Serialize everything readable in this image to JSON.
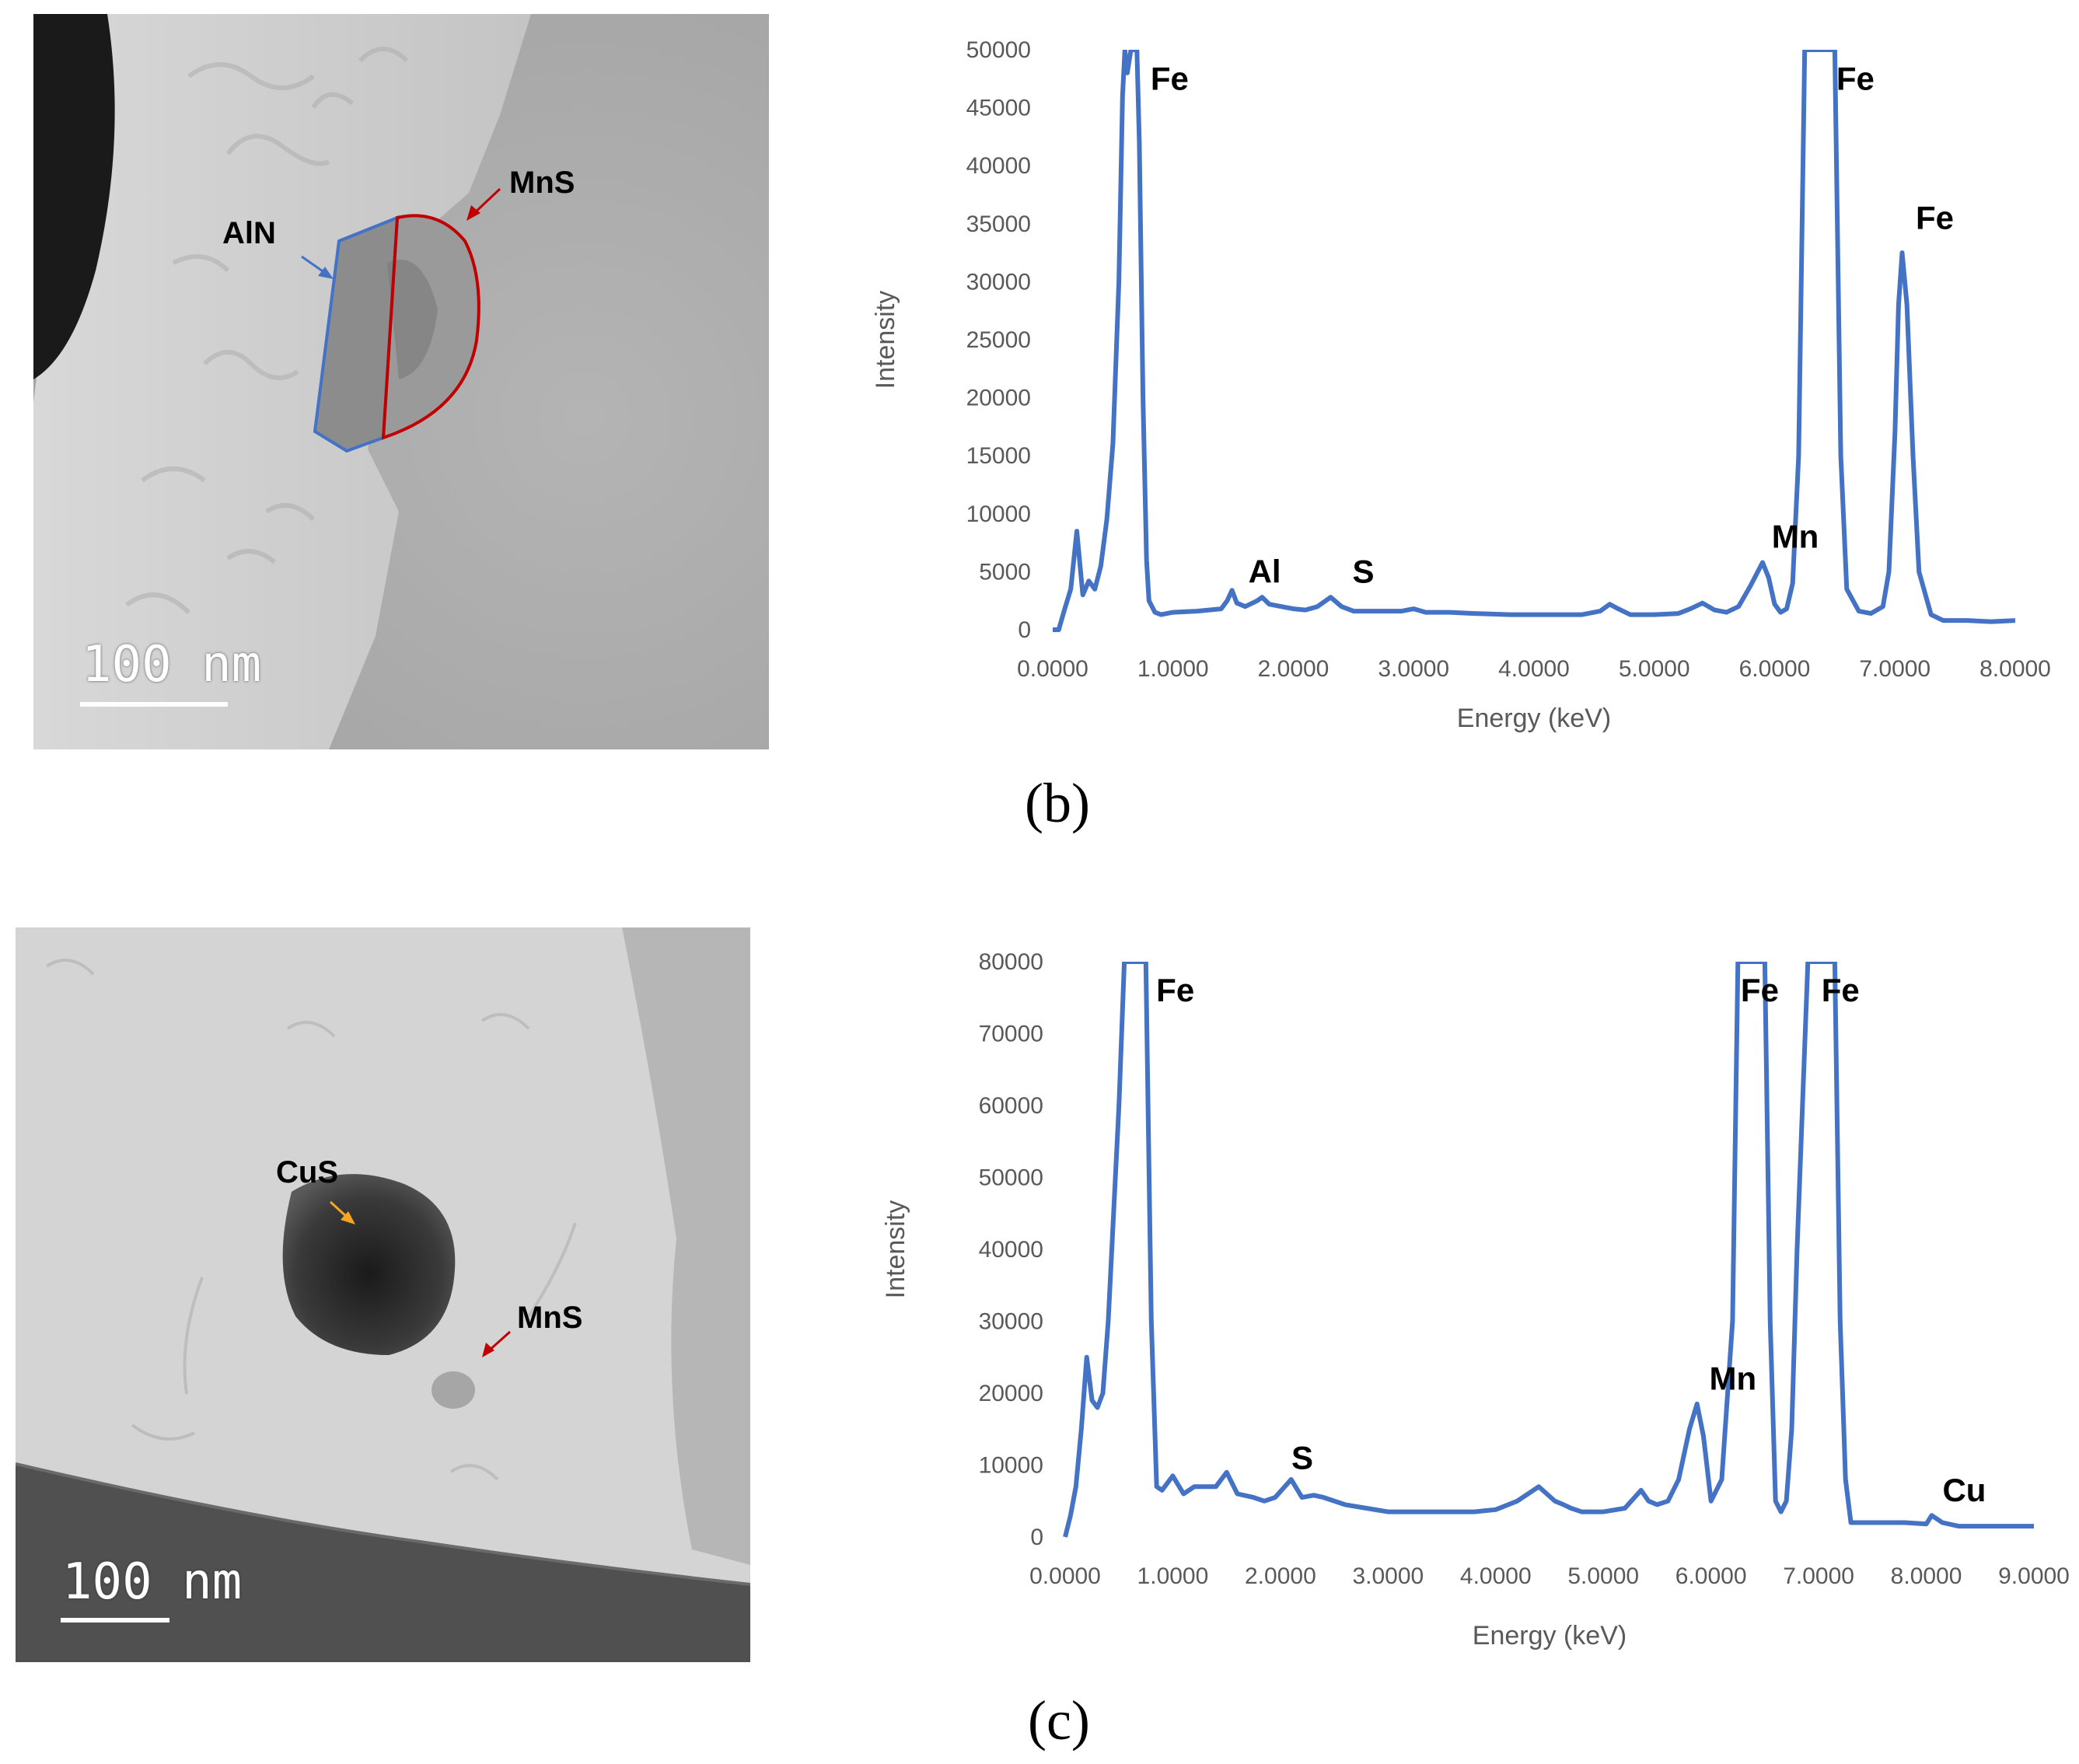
{
  "colors": {
    "series": "#4472C4",
    "aln_outline": "#4472C4",
    "mns_outline": "#C00000",
    "cus_arrow": "#F5A623",
    "axis_text": "#595959"
  },
  "micrographs": [
    {
      "scale_bar_label": "100 nm",
      "annotations": [
        "AlN",
        "MnS"
      ]
    },
    {
      "scale_bar_label": "100 nm",
      "annotations": [
        "CuS",
        "MnS"
      ]
    }
  ],
  "captions": [
    "(b)",
    "(c)"
  ],
  "chart_data": [
    {
      "type": "line",
      "xlabel": "Energy (keV)",
      "ylabel": "Intensity",
      "xlim": [
        0,
        8
      ],
      "ylim": [
        0,
        50000
      ],
      "x_ticks": [
        "0.0000",
        "1.0000",
        "2.0000",
        "3.0000",
        "4.0000",
        "5.0000",
        "6.0000",
        "7.0000",
        "8.0000"
      ],
      "y_ticks": [
        "0",
        "5000",
        "10000",
        "15000",
        "20000",
        "25000",
        "30000",
        "35000",
        "40000",
        "45000",
        "50000"
      ],
      "peak_labels": [
        {
          "text": "Fe",
          "x": 0.7,
          "y": 47500
        },
        {
          "text": "Al",
          "x": 1.49,
          "y": 5000
        },
        {
          "text": "S",
          "x": 2.31,
          "y": 5000
        },
        {
          "text": "Mn",
          "x": 5.9,
          "y": 8000
        },
        {
          "text": "Fe",
          "x": 6.4,
          "y": 47500
        },
        {
          "text": "Fe",
          "x": 7.06,
          "y": 35500
        }
      ],
      "series": [
        {
          "x": [
            0,
            0.05,
            0.1,
            0.15,
            0.2,
            0.25,
            0.3,
            0.35,
            0.4,
            0.45,
            0.5,
            0.55,
            0.58,
            0.6,
            0.62,
            0.65,
            0.68,
            0.7,
            0.72,
            0.75,
            0.78,
            0.8,
            0.85,
            0.9,
            1.0,
            1.2,
            1.4,
            1.45,
            1.49,
            1.53,
            1.6,
            1.7,
            1.74,
            1.8,
            1.9,
            2.0,
            2.1,
            2.2,
            2.31,
            2.4,
            2.5,
            2.7,
            2.9,
            3.0,
            3.1,
            3.3,
            3.5,
            3.8,
            4.0,
            4.2,
            4.4,
            4.55,
            4.63,
            4.7,
            4.8,
            5.0,
            5.2,
            5.3,
            5.4,
            5.5,
            5.6,
            5.7,
            5.8,
            5.9,
            5.95,
            6.0,
            6.05,
            6.1,
            6.15,
            6.2,
            6.25,
            6.3,
            6.35,
            6.4,
            6.45,
            6.5,
            6.55,
            6.6,
            6.7,
            6.8,
            6.9,
            6.95,
            7.0,
            7.03,
            7.06,
            7.1,
            7.15,
            7.2,
            7.3,
            7.4,
            7.6,
            7.8,
            8.0
          ],
          "y": [
            0,
            0,
            1800,
            3500,
            8500,
            3000,
            4200,
            3500,
            5500,
            9500,
            16000,
            30000,
            46000,
            50000,
            48000,
            50000,
            50000,
            50000,
            42000,
            20000,
            6000,
            2500,
            1500,
            1300,
            1500,
            1600,
            1800,
            2500,
            3400,
            2300,
            2000,
            2500,
            2800,
            2200,
            2000,
            1800,
            1700,
            2000,
            2800,
            2000,
            1600,
            1600,
            1600,
            1800,
            1500,
            1500,
            1400,
            1300,
            1300,
            1300,
            1300,
            1600,
            2200,
            1800,
            1300,
            1300,
            1400,
            1800,
            2300,
            1700,
            1500,
            2000,
            3800,
            5800,
            4500,
            2200,
            1500,
            1800,
            4000,
            15000,
            50000,
            50000,
            50000,
            50000,
            50000,
            50000,
            15000,
            3500,
            1600,
            1400,
            2000,
            5000,
            17000,
            28000,
            32500,
            28000,
            15000,
            5000,
            1300,
            800,
            800,
            700,
            800
          ]
        }
      ]
    },
    {
      "type": "line",
      "xlabel": "Energy (keV)",
      "ylabel": "Intensity",
      "xlim": [
        0,
        9
      ],
      "ylim": [
        0,
        80000
      ],
      "x_ticks": [
        "0.0000",
        "1.0000",
        "2.0000",
        "3.0000",
        "4.0000",
        "5.0000",
        "6.0000",
        "7.0000",
        "8.0000",
        "9.0000"
      ],
      "y_ticks": [
        "0",
        "10000",
        "20000",
        "30000",
        "40000",
        "50000",
        "60000",
        "70000",
        "80000"
      ],
      "peak_labels": [
        {
          "text": "Fe",
          "x": 0.72,
          "y": 76000
        },
        {
          "text": "S",
          "x": 1.9,
          "y": 11000
        },
        {
          "text": "Mn",
          "x": 5.9,
          "y": 22000
        },
        {
          "text": "Fe",
          "x": 6.15,
          "y": 76000
        },
        {
          "text": "Fe",
          "x": 6.9,
          "y": 76000
        },
        {
          "text": "Cu",
          "x": 8.05,
          "y": 6500
        }
      ],
      "series": [
        {
          "x": [
            0,
            0.05,
            0.1,
            0.15,
            0.2,
            0.25,
            0.3,
            0.35,
            0.4,
            0.45,
            0.5,
            0.55,
            0.6,
            0.65,
            0.7,
            0.75,
            0.8,
            0.85,
            0.9,
            1.0,
            1.1,
            1.2,
            1.4,
            1.5,
            1.6,
            1.75,
            1.85,
            1.95,
            2.1,
            2.2,
            2.31,
            2.4,
            2.6,
            2.8,
            3.0,
            3.2,
            3.5,
            3.8,
            4.0,
            4.2,
            4.4,
            4.55,
            4.63,
            4.7,
            4.8,
            5.0,
            5.2,
            5.35,
            5.42,
            5.5,
            5.6,
            5.7,
            5.8,
            5.87,
            5.93,
            6.0,
            6.1,
            6.2,
            6.25,
            6.3,
            6.35,
            6.4,
            6.45,
            6.5,
            6.55,
            6.6,
            6.65,
            6.7,
            6.75,
            6.8,
            6.9,
            7.0,
            7.05,
            7.1,
            7.15,
            7.2,
            7.25,
            7.3,
            7.4,
            7.6,
            7.8,
            8.0,
            8.05,
            8.15,
            8.3,
            8.6,
            9.0
          ],
          "y": [
            0,
            3000,
            7000,
            15000,
            25000,
            19000,
            18000,
            20000,
            30000,
            45000,
            60000,
            80000,
            80000,
            80000,
            80000,
            80000,
            30000,
            7000,
            6500,
            8500,
            6000,
            7000,
            7000,
            9000,
            6000,
            5500,
            5000,
            5500,
            8000,
            5500,
            5800,
            5500,
            4500,
            4000,
            3500,
            3500,
            3500,
            3500,
            3800,
            5000,
            7000,
            5000,
            4500,
            4000,
            3500,
            3500,
            4000,
            6500,
            5000,
            4500,
            5000,
            8000,
            15000,
            18500,
            14000,
            5000,
            8000,
            30000,
            80000,
            80000,
            80000,
            80000,
            80000,
            80000,
            30000,
            5000,
            3500,
            5000,
            15000,
            40000,
            80000,
            80000,
            80000,
            80000,
            80000,
            30000,
            8000,
            2000,
            2000,
            2000,
            2000,
            1800,
            3000,
            2000,
            1500,
            1500,
            1500
          ]
        }
      ]
    }
  ]
}
